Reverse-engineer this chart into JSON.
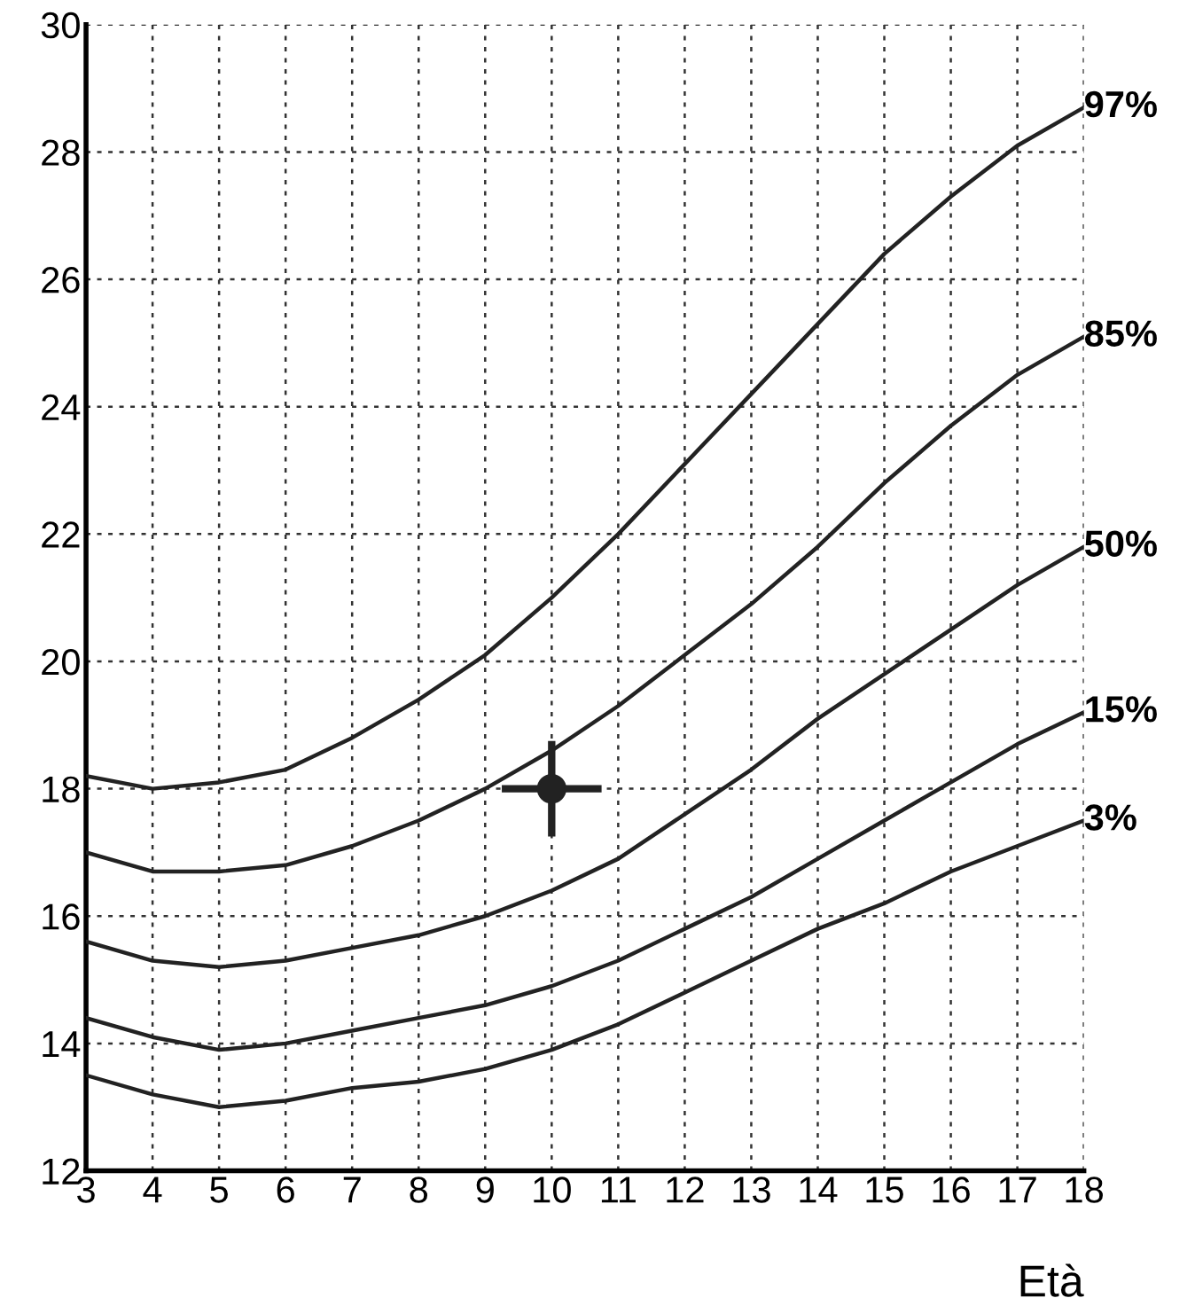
{
  "chart_data": {
    "type": "line",
    "xlabel": "Età",
    "x": [
      3,
      4,
      5,
      6,
      7,
      8,
      9,
      10,
      11,
      12,
      13,
      14,
      15,
      16,
      17,
      18
    ],
    "xlim": [
      3,
      18
    ],
    "xticks": [
      3,
      4,
      5,
      6,
      7,
      8,
      9,
      10,
      11,
      12,
      13,
      14,
      15,
      16,
      17,
      18
    ],
    "ylim": [
      12,
      30
    ],
    "yticks": [
      12,
      14,
      16,
      18,
      20,
      22,
      24,
      26,
      28,
      30
    ],
    "grid": true,
    "legend": false,
    "marker": "none",
    "line_style": "solid",
    "series": [
      {
        "name": "97%",
        "color": "#222222",
        "values": [
          18.2,
          18.0,
          18.1,
          18.3,
          18.8,
          19.4,
          20.1,
          21.0,
          22.0,
          23.1,
          24.2,
          25.3,
          26.4,
          27.3,
          28.1,
          28.7
        ]
      },
      {
        "name": "85%",
        "color": "#222222",
        "values": [
          17.0,
          16.7,
          16.7,
          16.8,
          17.1,
          17.5,
          18.0,
          18.6,
          19.3,
          20.1,
          20.9,
          21.8,
          22.8,
          23.7,
          24.5,
          25.1
        ]
      },
      {
        "name": "50%",
        "color": "#222222",
        "values": [
          15.6,
          15.3,
          15.2,
          15.3,
          15.5,
          15.7,
          16.0,
          16.4,
          16.9,
          17.6,
          18.3,
          19.1,
          19.8,
          20.5,
          21.2,
          21.8
        ]
      },
      {
        "name": "15%",
        "color": "#222222",
        "values": [
          14.4,
          14.1,
          13.9,
          14.0,
          14.2,
          14.4,
          14.6,
          14.9,
          15.3,
          15.8,
          16.3,
          16.9,
          17.5,
          18.1,
          18.7,
          19.2
        ]
      },
      {
        "name": "3%",
        "color": "#222222",
        "values": [
          13.5,
          13.2,
          13.0,
          13.1,
          13.3,
          13.4,
          13.6,
          13.9,
          14.3,
          14.8,
          15.3,
          15.8,
          16.2,
          16.7,
          17.1,
          17.5
        ]
      },
      {
        "type": "scatter",
        "marker": "circle",
        "color": "#222222",
        "x": [
          10
        ],
        "values": [
          18.0
        ],
        "errors": [
          0.75
        ],
        "xerrors": [
          0.75
        ]
      }
    ]
  }
}
